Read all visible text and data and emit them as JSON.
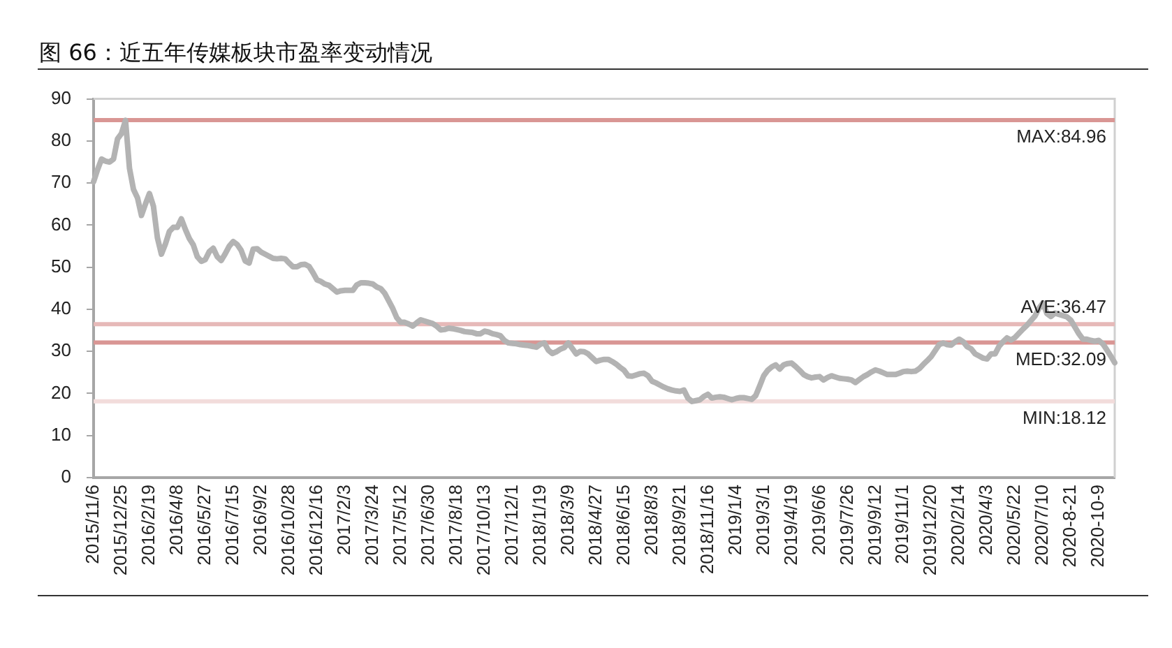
{
  "chart_data": {
    "type": "line",
    "title": "图 66：近五年传媒板块市盈率变动情况",
    "categories": [
      "2015/11/6",
      null,
      null,
      null,
      null,
      null,
      null,
      "2015/12/25",
      null,
      null,
      null,
      null,
      null,
      null,
      "2016/2/19",
      null,
      null,
      null,
      null,
      null,
      null,
      "2016/4/8",
      null,
      null,
      null,
      null,
      null,
      null,
      "2016/5/27",
      null,
      null,
      null,
      null,
      null,
      null,
      "2016/7/15",
      null,
      null,
      null,
      null,
      null,
      null,
      "2016/9/2",
      null,
      null,
      null,
      null,
      null,
      null,
      "2016/10/28",
      null,
      null,
      null,
      null,
      null,
      null,
      "2016/12/16",
      null,
      null,
      null,
      null,
      null,
      null,
      "2017/2/3",
      null,
      null,
      null,
      null,
      null,
      null,
      "2017/3/24",
      null,
      null,
      null,
      null,
      null,
      null,
      "2017/5/12",
      null,
      null,
      null,
      null,
      null,
      null,
      "2017/6/30",
      null,
      null,
      null,
      null,
      null,
      null,
      "2017/8/18",
      null,
      null,
      null,
      null,
      null,
      null,
      "2017/10/13",
      null,
      null,
      null,
      null,
      null,
      null,
      "2017/12/1",
      null,
      null,
      null,
      null,
      null,
      null,
      "2018/1/19",
      null,
      null,
      null,
      null,
      null,
      null,
      "2018/3/9",
      null,
      null,
      null,
      null,
      null,
      null,
      "2018/4/27",
      null,
      null,
      null,
      null,
      null,
      null,
      "2018/6/15",
      null,
      null,
      null,
      null,
      null,
      null,
      "2018/8/3",
      null,
      null,
      null,
      null,
      null,
      null,
      "2018/9/21",
      null,
      null,
      null,
      null,
      null,
      null,
      "2018/11/16",
      null,
      null,
      null,
      null,
      null,
      null,
      "2019/1/4",
      null,
      null,
      null,
      null,
      null,
      null,
      "2019/3/1",
      null,
      null,
      null,
      null,
      null,
      null,
      "2019/4/19",
      null,
      null,
      null,
      null,
      null,
      null,
      "2019/6/6",
      null,
      null,
      null,
      null,
      null,
      null,
      "2019/7/26",
      null,
      null,
      null,
      null,
      null,
      null,
      "2019/9/12",
      null,
      null,
      null,
      null,
      null,
      null,
      "2019/11/1",
      null,
      null,
      null,
      null,
      null,
      null,
      "2019/12/20",
      null,
      null,
      null,
      null,
      null,
      null,
      "2020/2/14",
      null,
      null,
      null,
      null,
      null,
      null,
      "2020/4/3",
      null,
      null,
      null,
      null,
      null,
      null,
      "2020/5/22",
      null,
      null,
      null,
      null,
      null,
      null,
      "2020/7/10",
      null,
      null,
      null,
      null,
      null,
      null,
      "2020-8-21",
      null,
      null,
      null,
      null,
      null,
      null,
      "2020-10-9",
      null,
      null,
      null,
      null
    ],
    "series": [
      {
        "color": "#b3b3b3",
        "values": [
          70.3,
          73.2,
          75.7,
          75.2,
          75.0,
          75.7,
          80.5,
          81.8,
          84.9,
          73.5,
          68.5,
          66.5,
          62.3,
          65,
          67.5,
          64.5,
          57,
          53.1,
          55.5,
          58.5,
          59.5,
          59.5,
          61.5,
          59,
          56.8,
          55.3,
          52.5,
          51.4,
          51.8,
          53.7,
          54.5,
          52.5,
          51.6,
          53.2,
          55,
          56.1,
          55.4,
          54,
          51.5,
          51,
          54.3,
          54.4,
          53.6,
          53.1,
          52.6,
          52.1,
          52,
          52.1,
          52,
          51,
          50.1,
          50.1,
          50.6,
          50.7,
          50.2,
          48.7,
          47,
          46.6,
          46,
          45.7,
          44.9,
          44.1,
          44.4,
          44.5,
          44.5,
          44.5,
          45.8,
          46.3,
          46.3,
          46.2,
          46,
          45.3,
          44.9,
          43.8,
          42,
          40.2,
          38,
          36.9,
          36.9,
          36.5,
          36,
          36.8,
          37.5,
          37.2,
          36.9,
          36.6,
          36,
          35.1,
          35.2,
          35.5,
          35.4,
          35.2,
          35,
          34.7,
          34.6,
          34.5,
          34.2,
          34.2,
          34.8,
          34.6,
          34.2,
          34,
          33.7,
          32.6,
          32,
          31.9,
          31.8,
          31.6,
          31.5,
          31.4,
          31.2,
          31,
          31.7,
          32,
          30.3,
          29.5,
          29.9,
          30.5,
          30.9,
          32,
          30.7,
          29.4,
          30,
          29.9,
          29.4,
          28.5,
          27.6,
          27.9,
          28.1,
          28.1,
          27.6,
          27,
          26.2,
          25.5,
          24.2,
          24.1,
          24.4,
          24.7,
          24.8,
          24.2,
          22.9,
          22.5,
          22,
          21.5,
          21.1,
          20.8,
          20.6,
          20.5,
          20.8,
          18.9,
          18.1,
          18.3,
          18.5,
          19.3,
          19.8,
          18.9,
          19.1,
          19.2,
          19.1,
          18.8,
          18.5,
          18.8,
          19,
          19,
          18.8,
          18.6,
          19.5,
          21.8,
          24.2,
          25.5,
          26.3,
          26.8,
          25.8,
          26.8,
          27.1,
          27.2,
          26.4,
          25.5,
          24.5,
          24,
          23.7,
          23.9,
          24,
          23.2,
          23.8,
          24.2,
          23.9,
          23.6,
          23.5,
          23.4,
          23.2,
          22.6,
          23.3,
          24,
          24.5,
          25.1,
          25.6,
          25.3,
          24.9,
          24.5,
          24.5,
          24.5,
          24.8,
          25.2,
          25.3,
          25.2,
          25.3,
          25.9,
          26.9,
          27.8,
          28.8,
          30.2,
          31.6,
          32,
          31.6,
          31.5,
          32.3,
          32.9,
          32.3,
          31.1,
          30.6,
          29.4,
          28.9,
          28.4,
          28.2,
          29.4,
          29.4,
          31.2,
          32.3,
          33.2,
          32.7,
          33.3,
          34.3,
          35.3,
          36.2,
          37.3,
          38.4,
          40.2,
          41.5,
          39,
          38.3,
          39.1,
          38.8,
          38.5,
          38.2,
          37.4,
          35.8,
          34.2,
          32.9,
          32.9,
          32.6,
          32.4,
          32.6,
          31.8,
          30.4,
          28.9,
          27.3
        ]
      }
    ],
    "ylim": [
      0,
      90
    ],
    "yticks": [
      0,
      10,
      20,
      30,
      40,
      50,
      60,
      70,
      80,
      90
    ],
    "grid": false,
    "legend": false,
    "marker": "none",
    "line_style": "solid",
    "ref_lines": [
      {
        "axis": "y",
        "value": 84.96,
        "label": "MAX:84.96",
        "color": "#d99694"
      },
      {
        "axis": "y",
        "value": 36.47,
        "label": "AVE:36.47",
        "color": "#e6b9b8"
      },
      {
        "axis": "y",
        "value": 32.09,
        "label": "MED:32.09",
        "color": "#d99694"
      },
      {
        "axis": "y",
        "value": 18.12,
        "label": "MIN:18.12",
        "color": "#f2dcdb"
      }
    ]
  }
}
